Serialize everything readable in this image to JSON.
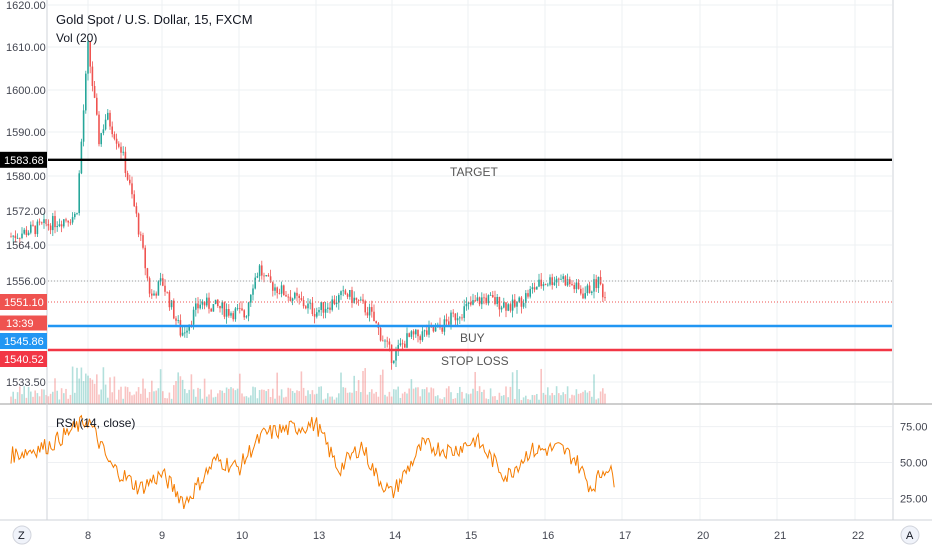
{
  "header": {
    "title": "Gold Spot / U.S. Dollar, 15, FXCM",
    "volume_label": "Vol (20)"
  },
  "rsi": {
    "label": "RSI (14, close)",
    "ticks": [
      "75.00",
      "50.00",
      "25.00"
    ]
  },
  "bottom": {
    "z_label": "Z",
    "a_label": "A"
  },
  "colors": {
    "up": "#26a69a",
    "down": "#ef5350",
    "target": "#000000",
    "buy": "#2196f3",
    "stop": "#f23645",
    "rsi_line": "#f57c00",
    "grid": "#eef0f3"
  },
  "chart_data": [
    {
      "type": "candlestick",
      "title": "Gold Spot / U.S. Dollar, 15, FXCM",
      "ylim": [
        1526,
        1620
      ],
      "y_ticks": [
        "1620.00",
        "1610.00",
        "1600.00",
        "1590.00",
        "1580.00",
        "1572.00",
        "1564.00",
        "1556.00",
        "1533.50"
      ],
      "x_ticks": [
        "8",
        "9",
        "10",
        "13",
        "14",
        "15",
        "16",
        "17",
        "20",
        "21",
        "22"
      ],
      "price_path": [
        {
          "x": "7",
          "y": 1566
        },
        {
          "x": "7.5",
          "y": 1569
        },
        {
          "x": "7.85",
          "y": 1571
        },
        {
          "x": "8",
          "y": 1610
        },
        {
          "x": "8.15",
          "y": 1588
        },
        {
          "x": "8.25",
          "y": 1594
        },
        {
          "x": "8.45",
          "y": 1586
        },
        {
          "x": "8.65",
          "y": 1571
        },
        {
          "x": "8.85",
          "y": 1552
        },
        {
          "x": "9",
          "y": 1556
        },
        {
          "x": "9.25",
          "y": 1544
        },
        {
          "x": "9.5",
          "y": 1551
        },
        {
          "x": "9.9",
          "y": 1549
        },
        {
          "x": "10.25",
          "y": 1548
        },
        {
          "x": "10.5",
          "y": 1555
        },
        {
          "x": "10.8",
          "y": 1559
        },
        {
          "x": "11",
          "y": 1556
        },
        {
          "x": "13",
          "y": 1549
        },
        {
          "x": "13.4",
          "y": 1553
        },
        {
          "x": "13.7",
          "y": 1549
        },
        {
          "x": "14",
          "y": 1539
        },
        {
          "x": "14.2",
          "y": 1543
        },
        {
          "x": "14.6",
          "y": 1545
        },
        {
          "x": "14.9",
          "y": 1549
        },
        {
          "x": "15.2",
          "y": 1552
        },
        {
          "x": "15.6",
          "y": 1550
        },
        {
          "x": "15.9",
          "y": 1555
        },
        {
          "x": "16.2",
          "y": 1557
        },
        {
          "x": "16.5",
          "y": 1553
        },
        {
          "x": "16.7",
          "y": 1556
        },
        {
          "x": "16.8",
          "y": 1551
        }
      ],
      "levels": [
        {
          "name": "TARGET",
          "value": 1583.68,
          "label": "1583.68"
        },
        {
          "name": "BUY",
          "value": 1545.86,
          "label": "1545.86"
        },
        {
          "name": "STOP LOSS",
          "value": 1540.52,
          "label": "1540.52"
        }
      ],
      "level_texts": [
        "TARGET",
        "BUY",
        "STOP LOSS"
      ],
      "last_price": {
        "value": 1551.1,
        "label": "1551.10"
      },
      "countdown": "13:39",
      "dotted_level": 1556.0
    },
    {
      "type": "line",
      "title": "RSI (14, close)",
      "ylim": [
        10,
        90
      ],
      "y_ticks": [
        75,
        50,
        25
      ],
      "series": [
        {
          "values": [
            {
              "x": "7",
              "y": 55
            },
            {
              "x": "7.5",
              "y": 62
            },
            {
              "x": "8",
              "y": 80
            },
            {
              "x": "8.3",
              "y": 48
            },
            {
              "x": "8.7",
              "y": 32
            },
            {
              "x": "9",
              "y": 42
            },
            {
              "x": "9.3",
              "y": 22
            },
            {
              "x": "9.7",
              "y": 52
            },
            {
              "x": "10",
              "y": 46
            },
            {
              "x": "10.5",
              "y": 60
            },
            {
              "x": "11",
              "y": 70
            },
            {
              "x": "13",
              "y": 77
            },
            {
              "x": "13.3",
              "y": 45
            },
            {
              "x": "13.6",
              "y": 62
            },
            {
              "x": "13.8",
              "y": 40
            },
            {
              "x": "14",
              "y": 28
            },
            {
              "x": "14.4",
              "y": 62
            },
            {
              "x": "14.8",
              "y": 58
            },
            {
              "x": "15.1",
              "y": 66
            },
            {
              "x": "15.5",
              "y": 40
            },
            {
              "x": "15.8",
              "y": 58
            },
            {
              "x": "16.2",
              "y": 60
            },
            {
              "x": "16.4",
              "y": 52
            },
            {
              "x": "16.6",
              "y": 32
            },
            {
              "x": "16.8",
              "y": 48
            },
            {
              "x": "16.9",
              "y": 38
            }
          ]
        }
      ]
    }
  ]
}
